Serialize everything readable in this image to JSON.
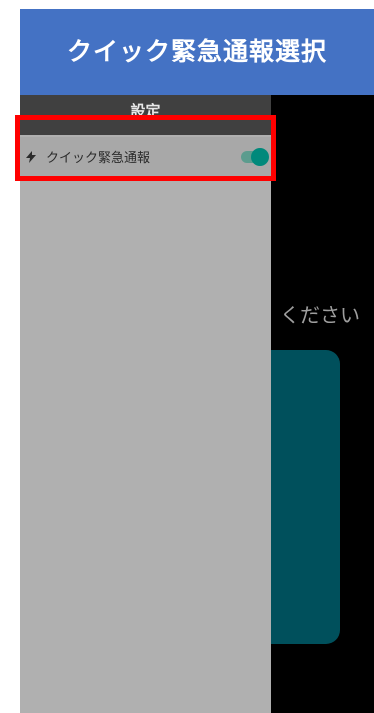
{
  "title": "クイック緊急通報選択",
  "drawer": {
    "header_title": "設定",
    "items": [
      {
        "icon": "bolt-icon",
        "label": "クイック緊急通報",
        "toggle_on": true
      }
    ]
  },
  "background": {
    "prompt_text": "ください"
  },
  "colors": {
    "title_banner": "#4472c4",
    "drawer_bg": "#b0b0b0",
    "drawer_header": "#404040",
    "toggle_accent": "#00897b",
    "card": "#00505c",
    "highlight": "#ff0000"
  }
}
